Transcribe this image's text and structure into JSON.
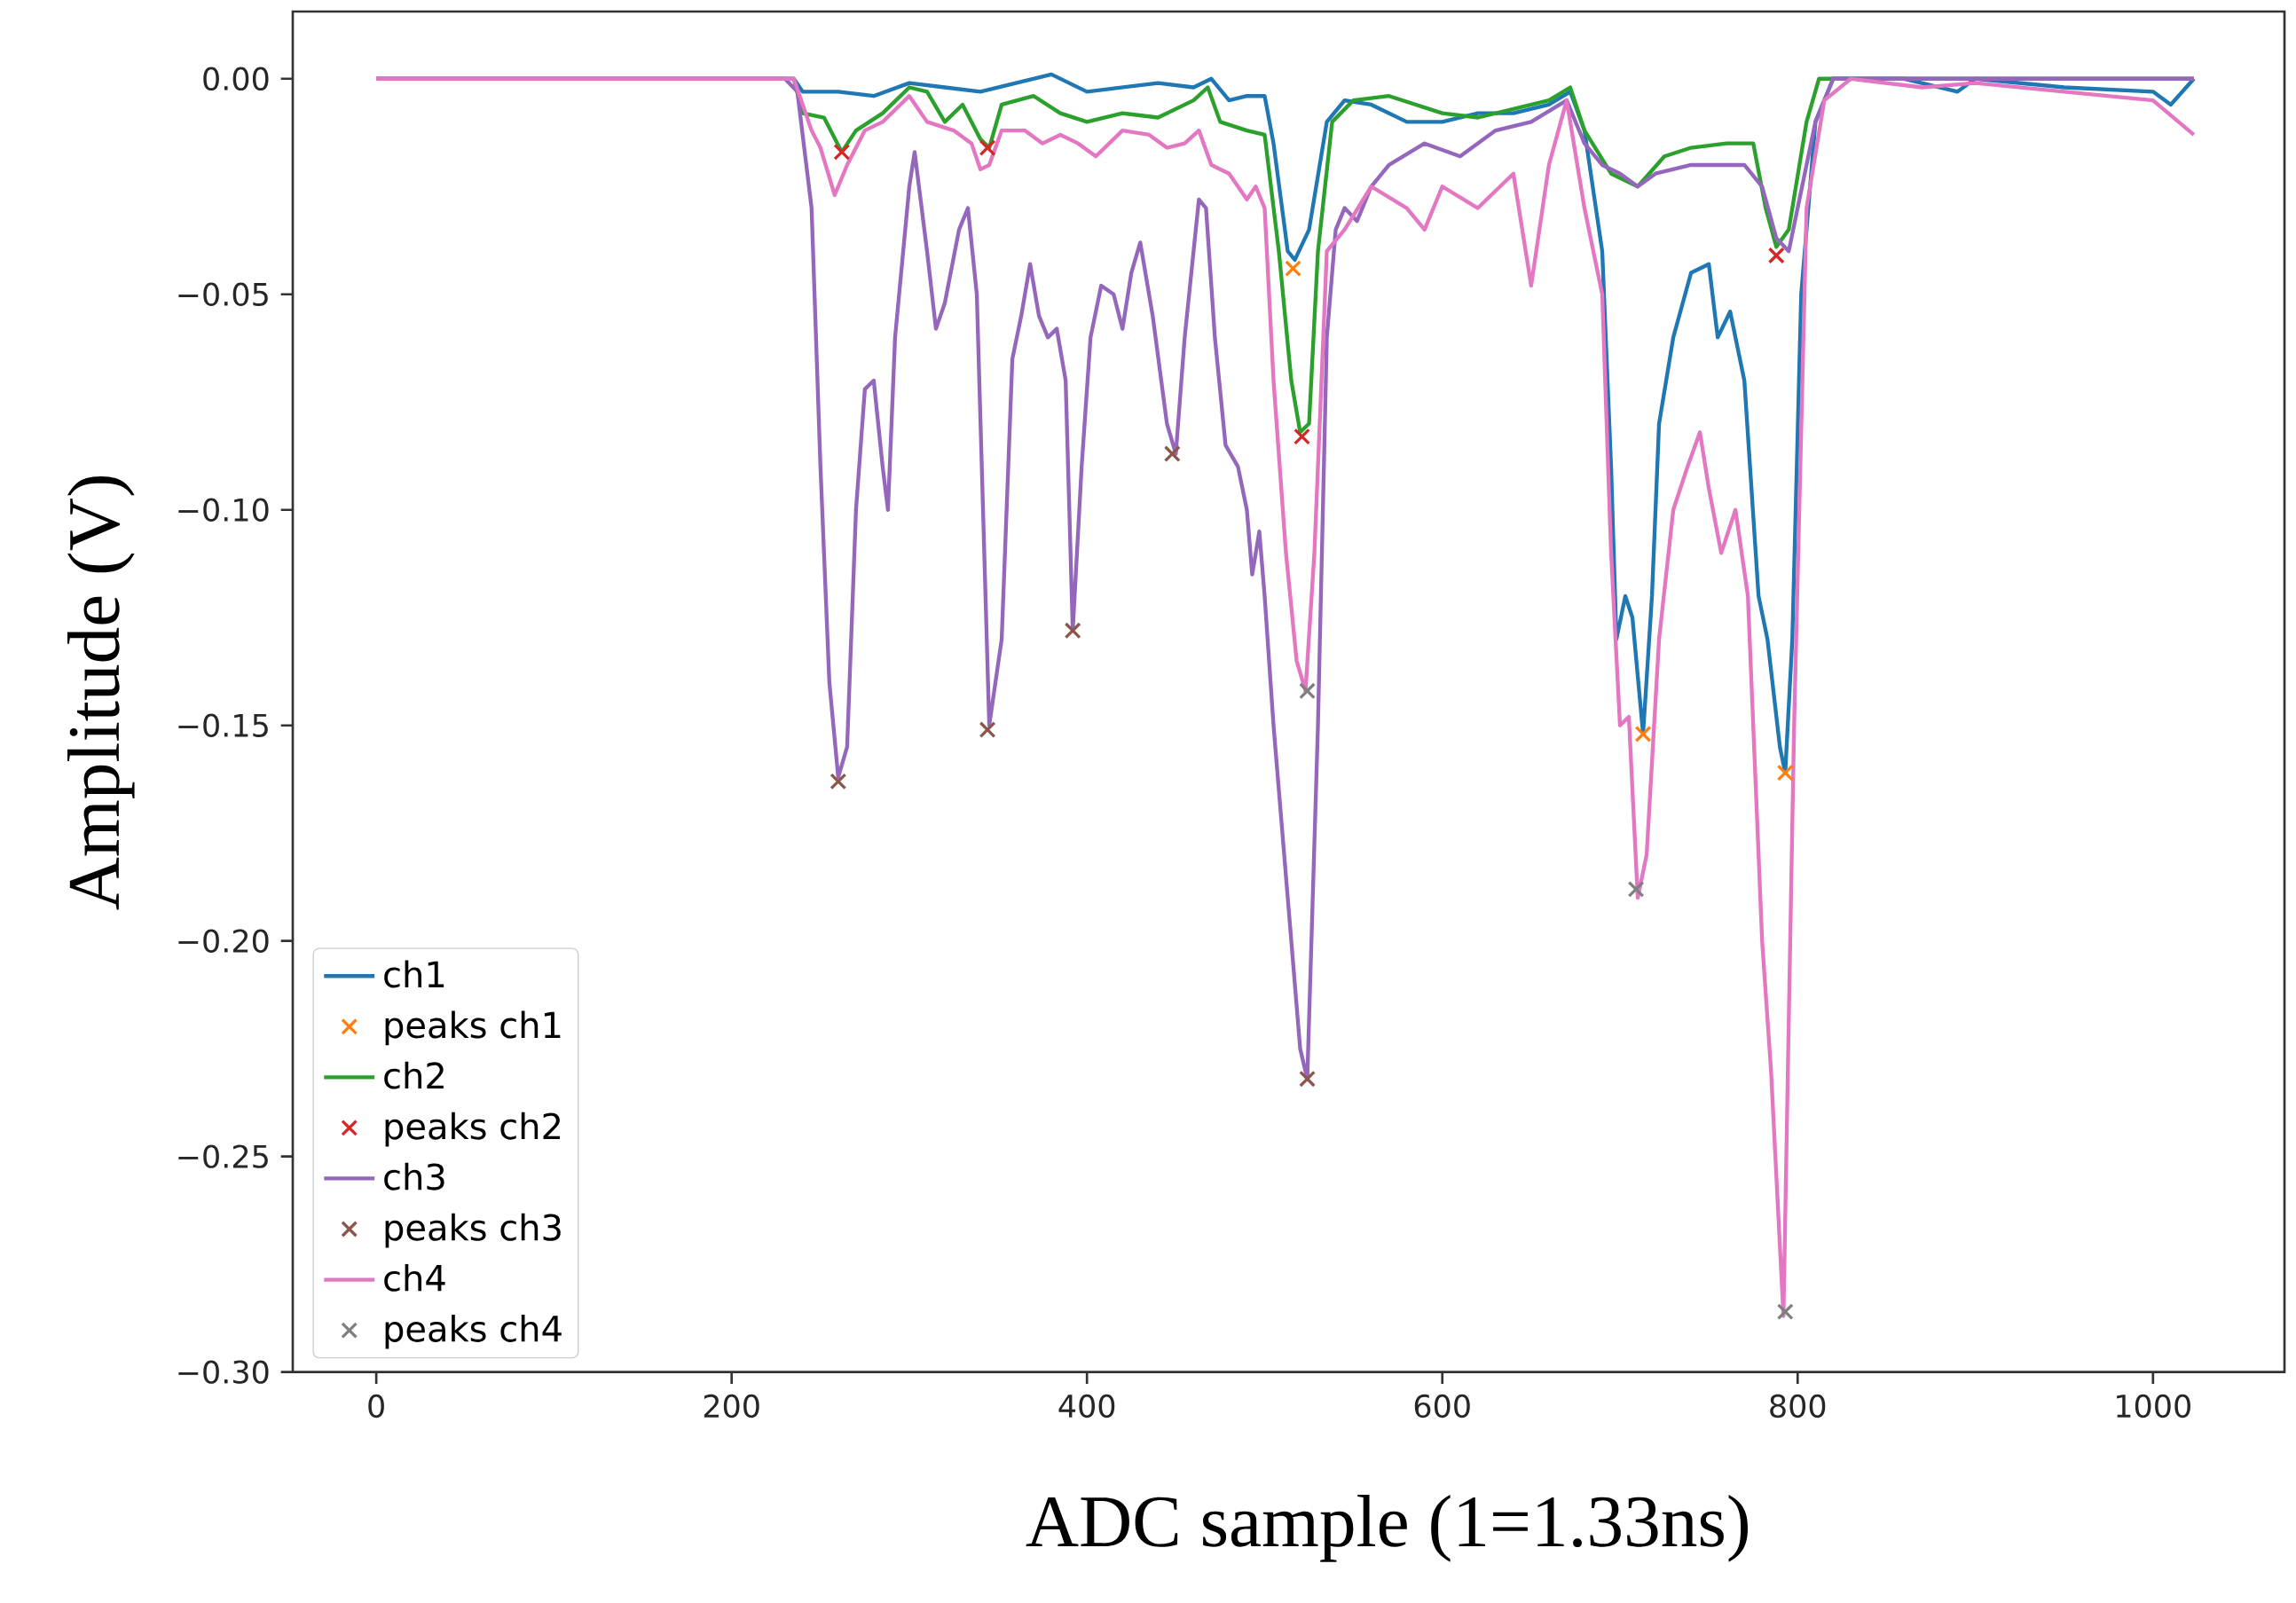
{
  "chart_data": {
    "type": "line",
    "xlabel": "ADC sample (1=1.33ns)",
    "ylabel": "Amplitude (V)",
    "xlim": [
      -47,
      1074
    ],
    "ylim": [
      -0.3,
      0.0156
    ],
    "xticks": [
      0,
      200,
      400,
      600,
      800,
      1000
    ],
    "yticks": [
      {
        "value": 0,
        "label": "0.00"
      },
      {
        "value": -0.05,
        "label": "−0.05"
      },
      {
        "value": -0.1,
        "label": "−0.10"
      },
      {
        "value": -0.15,
        "label": "−0.15"
      },
      {
        "value": -0.2,
        "label": "−0.20"
      },
      {
        "value": -0.25,
        "label": "−0.25"
      },
      {
        "value": -0.3,
        "label": "−0.30"
      }
    ],
    "grid": false,
    "legend": "bottom left",
    "line_style": "solid",
    "series": [
      {
        "name": "ch1",
        "marker": "none",
        "color": "#1f77b4",
        "x": [
          0,
          100,
          235,
          240,
          260,
          280,
          300,
          320,
          340,
          360,
          380,
          400,
          420,
          440,
          460,
          470,
          480,
          490,
          500,
          505,
          513,
          517,
          525,
          535,
          545,
          560,
          580,
          600,
          620,
          640,
          660,
          672,
          680,
          690,
          695,
          698,
          703,
          707,
          713,
          718,
          722,
          730,
          740,
          750,
          755,
          762,
          770,
          778,
          783,
          790,
          793,
          797,
          802,
          810,
          820,
          860,
          890,
          900,
          950,
          1000,
          1010,
          1023
        ],
        "values": [
          0,
          0,
          0,
          -0.003,
          -0.003,
          -0.004,
          -0.001,
          -0.002,
          -0.003,
          -0.001,
          0.001,
          -0.003,
          -0.002,
          -0.001,
          -0.002,
          0,
          -0.005,
          -0.004,
          -0.004,
          -0.015,
          -0.04,
          -0.042,
          -0.035,
          -0.01,
          -0.005,
          -0.006,
          -0.01,
          -0.01,
          -0.008,
          -0.008,
          -0.006,
          -0.003,
          -0.012,
          -0.04,
          -0.09,
          -0.13,
          -0.12,
          -0.125,
          -0.152,
          -0.12,
          -0.08,
          -0.06,
          -0.045,
          -0.043,
          -0.06,
          -0.054,
          -0.07,
          -0.12,
          -0.13,
          -0.155,
          -0.161,
          -0.13,
          -0.05,
          -0.01,
          0,
          0,
          -0.003,
          0,
          -0.002,
          -0.003,
          -0.006,
          0
        ]
      },
      {
        "name": "peaks ch1",
        "type": "scatter",
        "marker": "cross",
        "color": "#ff7f0e",
        "x": [
          516,
          713,
          793
        ],
        "values": [
          -0.044,
          -0.152,
          -0.161
        ]
      },
      {
        "name": "ch2",
        "marker": "none",
        "color": "#2ca02c",
        "x": [
          235,
          240,
          252,
          262,
          270,
          285,
          300,
          310,
          320,
          330,
          340,
          345,
          352,
          370,
          385,
          400,
          420,
          440,
          460,
          468,
          475,
          490,
          500,
          508,
          515,
          520,
          525,
          530,
          538,
          550,
          570,
          600,
          620,
          640,
          660,
          672,
          680,
          695,
          710,
          725,
          740,
          760,
          775,
          782,
          788,
          795,
          805,
          812,
          1023
        ],
        "values": [
          0,
          -0.008,
          -0.009,
          -0.017,
          -0.012,
          -0.008,
          -0.002,
          -0.003,
          -0.01,
          -0.006,
          -0.014,
          -0.016,
          -0.006,
          -0.004,
          -0.008,
          -0.01,
          -0.008,
          -0.009,
          -0.005,
          -0.002,
          -0.01,
          -0.012,
          -0.013,
          -0.04,
          -0.07,
          -0.082,
          -0.08,
          -0.04,
          -0.01,
          -0.005,
          -0.004,
          -0.008,
          -0.009,
          -0.007,
          -0.005,
          -0.002,
          -0.012,
          -0.022,
          -0.025,
          -0.018,
          -0.016,
          -0.015,
          -0.015,
          -0.03,
          -0.039,
          -0.035,
          -0.01,
          0,
          0
        ]
      },
      {
        "name": "peaks ch2",
        "type": "scatter",
        "marker": "cross",
        "color": "#d62728",
        "x": [
          262,
          344,
          521,
          788
        ],
        "values": [
          -0.017,
          -0.016,
          -0.083,
          -0.041
        ]
      },
      {
        "name": "ch3",
        "marker": "none",
        "color": "#9467bd",
        "x": [
          0,
          100,
          230,
          237,
          245,
          250,
          255,
          260,
          265,
          270,
          275,
          280,
          285,
          288,
          292,
          300,
          303,
          310,
          315,
          320,
          328,
          333,
          338,
          345,
          352,
          358,
          363,
          368,
          373,
          378,
          383,
          388,
          392,
          397,
          402,
          408,
          415,
          420,
          425,
          430,
          437,
          445,
          450,
          455,
          463,
          467,
          472,
          478,
          485,
          490,
          493,
          497,
          500,
          505,
          513,
          520,
          524,
          530,
          535,
          540,
          545,
          552,
          560,
          570,
          590,
          610,
          630,
          650,
          670,
          680,
          690,
          700,
          710,
          720,
          740,
          760,
          770,
          780,
          788,
          795,
          800,
          810,
          820,
          1023
        ],
        "values": [
          0,
          0,
          0,
          -0.003,
          -0.03,
          -0.09,
          -0.14,
          -0.162,
          -0.155,
          -0.1,
          -0.072,
          -0.07,
          -0.09,
          -0.1,
          -0.06,
          -0.025,
          -0.017,
          -0.04,
          -0.058,
          -0.052,
          -0.035,
          -0.03,
          -0.05,
          -0.15,
          -0.13,
          -0.065,
          -0.055,
          -0.043,
          -0.055,
          -0.06,
          -0.058,
          -0.07,
          -0.128,
          -0.09,
          -0.06,
          -0.048,
          -0.05,
          -0.058,
          -0.045,
          -0.038,
          -0.055,
          -0.08,
          -0.087,
          -0.06,
          -0.028,
          -0.03,
          -0.06,
          -0.085,
          -0.09,
          -0.1,
          -0.115,
          -0.105,
          -0.12,
          -0.15,
          -0.19,
          -0.225,
          -0.232,
          -0.15,
          -0.06,
          -0.035,
          -0.03,
          -0.033,
          -0.025,
          -0.02,
          -0.015,
          -0.018,
          -0.012,
          -0.01,
          -0.005,
          -0.015,
          -0.02,
          -0.022,
          -0.025,
          -0.022,
          -0.02,
          -0.02,
          -0.02,
          -0.025,
          -0.037,
          -0.04,
          -0.03,
          -0.01,
          0,
          0
        ]
      },
      {
        "name": "peaks ch3",
        "type": "scatter",
        "marker": "cross",
        "color": "#8c564b",
        "x": [
          260,
          344,
          392,
          448,
          524
        ],
        "values": [
          -0.163,
          -0.151,
          -0.128,
          -0.087,
          -0.232
        ]
      },
      {
        "name": "ch4",
        "marker": "none",
        "color": "#e377c2",
        "x": [
          0,
          100,
          235,
          245,
          250,
          258,
          265,
          275,
          285,
          300,
          310,
          325,
          335,
          340,
          345,
          352,
          365,
          375,
          385,
          395,
          405,
          420,
          435,
          445,
          455,
          463,
          470,
          480,
          490,
          495,
          500,
          505,
          512,
          518,
          523,
          528,
          535,
          545,
          560,
          580,
          590,
          600,
          620,
          640,
          650,
          660,
          670,
          680,
          690,
          695,
          700,
          705,
          710,
          715,
          722,
          730,
          738,
          745,
          750,
          757,
          765,
          772,
          780,
          785,
          792,
          798,
          805,
          815,
          830,
          870,
          900,
          950,
          1000,
          1023
        ],
        "values": [
          0,
          0,
          0,
          -0.012,
          -0.016,
          -0.027,
          -0.02,
          -0.012,
          -0.01,
          -0.004,
          -0.01,
          -0.012,
          -0.015,
          -0.021,
          -0.02,
          -0.012,
          -0.012,
          -0.015,
          -0.013,
          -0.015,
          -0.018,
          -0.012,
          -0.013,
          -0.016,
          -0.015,
          -0.012,
          -0.02,
          -0.022,
          -0.028,
          -0.025,
          -0.03,
          -0.07,
          -0.11,
          -0.135,
          -0.142,
          -0.11,
          -0.04,
          -0.035,
          -0.025,
          -0.03,
          -0.035,
          -0.025,
          -0.03,
          -0.022,
          -0.048,
          -0.02,
          -0.005,
          -0.03,
          -0.05,
          -0.11,
          -0.15,
          -0.148,
          -0.19,
          -0.18,
          -0.13,
          -0.1,
          -0.09,
          -0.082,
          -0.095,
          -0.11,
          -0.1,
          -0.12,
          -0.2,
          -0.23,
          -0.287,
          -0.15,
          -0.03,
          -0.005,
          0,
          -0.002,
          -0.001,
          -0.003,
          -0.005,
          -0.013
        ]
      },
      {
        "name": "peaks ch4",
        "type": "scatter",
        "marker": "cross",
        "color": "#7f7f7f",
        "x": [
          524,
          709,
          793
        ],
        "values": [
          -0.142,
          -0.188,
          -0.286
        ]
      }
    ]
  }
}
